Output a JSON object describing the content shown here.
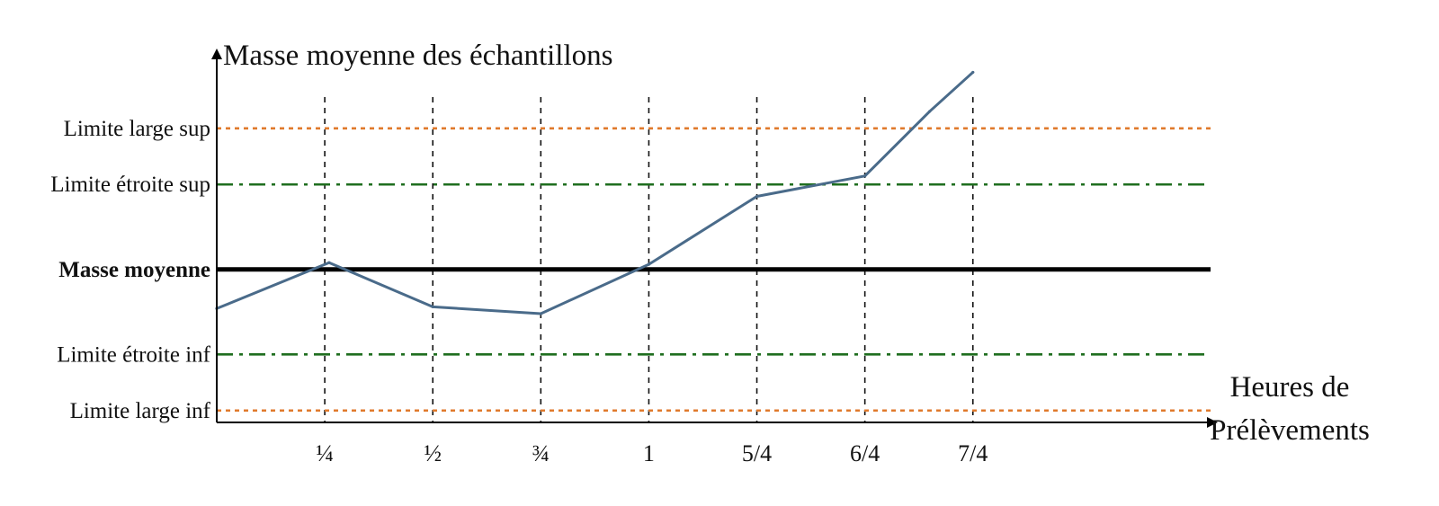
{
  "chart_data": {
    "type": "line",
    "title": "",
    "ylabel": "Masse moyenne des échantillons",
    "xlabel_lines": [
      "Heures de",
      "Prélèvements"
    ],
    "x_domain": [
      0,
      2.3
    ],
    "y_domain": [
      -0.9,
      1.12
    ],
    "x_ticks": [
      {
        "value": 0.25,
        "label": "¼"
      },
      {
        "value": 0.5,
        "label": "½"
      },
      {
        "value": 0.75,
        "label": "¾"
      },
      {
        "value": 1.0,
        "label": "1"
      },
      {
        "value": 1.25,
        "label": "5/4"
      },
      {
        "value": 1.5,
        "label": "6/4"
      },
      {
        "value": 1.75,
        "label": "7/4"
      }
    ],
    "control_lines": [
      {
        "label": "Limite large sup",
        "value": 0.83,
        "style": "dotted",
        "color": "#e07a2c"
      },
      {
        "label": "Limite étroite sup",
        "value": 0.5,
        "style": "dashdot",
        "color": "#1f6e1f"
      },
      {
        "label": "Masse moyenne",
        "value": 0.0,
        "style": "solid",
        "color": "#000000",
        "bold": true
      },
      {
        "label": "Limite étroite inf",
        "value": -0.5,
        "style": "dashdot",
        "color": "#1f6e1f"
      },
      {
        "label": "Limite large inf",
        "value": -0.83,
        "style": "dotted",
        "color": "#e07a2c"
      }
    ],
    "series": [
      {
        "color": "#4a6b8a",
        "x": [
          0.0,
          0.26,
          0.5,
          0.75,
          1.0,
          1.25,
          1.5,
          1.65,
          1.75
        ],
        "y": [
          -0.23,
          0.04,
          -0.22,
          -0.26,
          0.03,
          0.43,
          0.55,
          0.93,
          1.16
        ]
      }
    ],
    "grid": "vertical dashed at x ticks"
  }
}
